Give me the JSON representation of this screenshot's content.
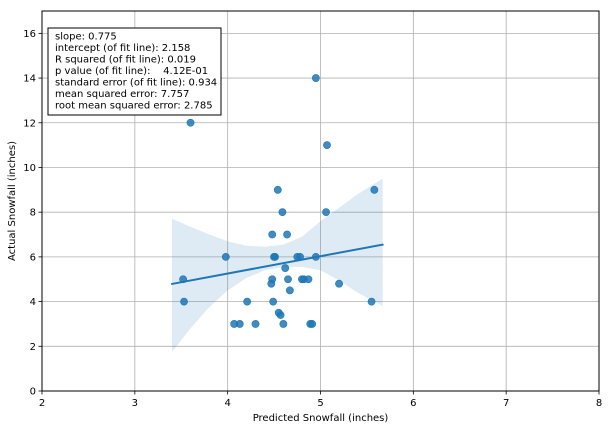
{
  "chart_data": {
    "type": "scatter",
    "title": "",
    "xlabel": "Predicted Snowfall (inches)",
    "ylabel": "Actual Snowfall (inches)",
    "xlim": [
      2,
      8
    ],
    "ylim": [
      0,
      17
    ],
    "xticks": [
      2,
      3,
      4,
      5,
      6,
      7,
      8
    ],
    "yticks": [
      0,
      2,
      4,
      6,
      8,
      10,
      12,
      14,
      16
    ],
    "grid": true,
    "colors": {
      "points": "#1f77b4",
      "fit_line": "#1f77b4",
      "confidence_band": "#1f77b4"
    },
    "points": [
      {
        "x": 3.52,
        "y": 5
      },
      {
        "x": 3.53,
        "y": 4
      },
      {
        "x": 3.6,
        "y": 12
      },
      {
        "x": 3.98,
        "y": 6
      },
      {
        "x": 4.07,
        "y": 3
      },
      {
        "x": 4.13,
        "y": 3
      },
      {
        "x": 4.21,
        "y": 4
      },
      {
        "x": 4.3,
        "y": 3
      },
      {
        "x": 4.47,
        "y": 4.8
      },
      {
        "x": 4.48,
        "y": 5
      },
      {
        "x": 4.48,
        "y": 7
      },
      {
        "x": 4.49,
        "y": 4
      },
      {
        "x": 4.5,
        "y": 6
      },
      {
        "x": 4.51,
        "y": 6
      },
      {
        "x": 4.54,
        "y": 9
      },
      {
        "x": 4.55,
        "y": 3.5
      },
      {
        "x": 4.57,
        "y": 3.4
      },
      {
        "x": 4.59,
        "y": 8
      },
      {
        "x": 4.6,
        "y": 3
      },
      {
        "x": 4.62,
        "y": 5.5
      },
      {
        "x": 4.64,
        "y": 7
      },
      {
        "x": 4.65,
        "y": 5
      },
      {
        "x": 4.67,
        "y": 4.5
      },
      {
        "x": 4.75,
        "y": 6
      },
      {
        "x": 4.78,
        "y": 6
      },
      {
        "x": 4.8,
        "y": 5
      },
      {
        "x": 4.82,
        "y": 5
      },
      {
        "x": 4.87,
        "y": 5
      },
      {
        "x": 4.89,
        "y": 3
      },
      {
        "x": 4.91,
        "y": 3
      },
      {
        "x": 4.95,
        "y": 14
      },
      {
        "x": 4.95,
        "y": 6
      },
      {
        "x": 5.06,
        "y": 8
      },
      {
        "x": 5.07,
        "y": 11
      },
      {
        "x": 5.2,
        "y": 4.8
      },
      {
        "x": 5.55,
        "y": 4
      },
      {
        "x": 5.58,
        "y": 9
      }
    ],
    "fit_line": {
      "x": [
        3.4,
        5.67
      ],
      "y": [
        4.79,
        6.55
      ]
    },
    "confidence_band": {
      "x": [
        3.4,
        3.6,
        3.8,
        4.0,
        4.2,
        4.4,
        4.6,
        4.8,
        5.0,
        5.2,
        5.4,
        5.67
      ],
      "upper": [
        7.7,
        7.35,
        7.0,
        6.7,
        6.5,
        6.45,
        6.55,
        6.9,
        7.6,
        8.2,
        8.8,
        9.5
      ],
      "lower": [
        1.75,
        2.8,
        3.75,
        4.5,
        5.05,
        5.4,
        5.55,
        5.55,
        5.4,
        4.95,
        4.4,
        3.8
      ]
    },
    "stats_box": {
      "lines": [
        "slope: 0.775",
        "intercept (of fit line): 2.158",
        "R squared (of fit line): 0.019",
        "p value (of fit line):    4.12E-01",
        "standard error (of fit line): 0.934",
        "mean squared error: 7.757",
        "root mean squared error: 2.785"
      ],
      "placement": "top-left"
    }
  }
}
